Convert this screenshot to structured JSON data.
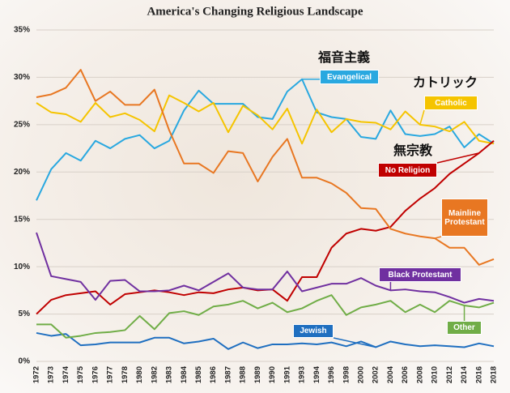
{
  "chart_data": {
    "type": "line",
    "title": "America's Changing Religious Landscape",
    "categories": [
      "1972",
      "1973",
      "1974",
      "1975",
      "1976",
      "1977",
      "1978",
      "1980",
      "1982",
      "1983",
      "1984",
      "1985",
      "1986",
      "1987",
      "1988",
      "1989",
      "1990",
      "1991",
      "1993",
      "1994",
      "1996",
      "1998",
      "2000",
      "2002",
      "2004",
      "2006",
      "2008",
      "2010",
      "2012",
      "2014",
      "2016",
      "2018"
    ],
    "ylim": [
      0,
      35
    ],
    "yticks": [
      {
        "value": 0,
        "label": "0%"
      },
      {
        "value": 5,
        "label": "5%"
      },
      {
        "value": 10,
        "label": "10%"
      },
      {
        "value": 15,
        "label": "15%"
      },
      {
        "value": 20,
        "label": "20%"
      },
      {
        "value": 25,
        "label": "25%"
      },
      {
        "value": 30,
        "label": "30%"
      },
      {
        "value": 35,
        "label": "35%"
      }
    ],
    "grid": true,
    "series": [
      {
        "name": "Evangelical",
        "color": "#29a8e0",
        "values": [
          17,
          20.3,
          22,
          21.2,
          23.3,
          22.5,
          23.5,
          23.9,
          22.5,
          23.3,
          26.5,
          28.6,
          27.2,
          27.2,
          27.2,
          25.8,
          25.6,
          28.5,
          29.8,
          26.3,
          25.8,
          25.6,
          23.7,
          23.5,
          26.5,
          24,
          23.8,
          24,
          24.8,
          22.6,
          24,
          23
        ]
      },
      {
        "name": "Catholic",
        "color": "#f5c400",
        "values": [
          27.3,
          26.3,
          26.1,
          25.3,
          27.3,
          25.8,
          26.2,
          25.5,
          24.3,
          28.1,
          27.3,
          26.4,
          27.3,
          24.2,
          27,
          26,
          24.5,
          26.7,
          23,
          26.6,
          24.2,
          25.6,
          25.3,
          25.2,
          24.5,
          26.4,
          25,
          24.8,
          24.3,
          25.3,
          23.3,
          23
        ]
      },
      {
        "name": "No Religion",
        "color": "#c00000",
        "values": [
          5,
          6.5,
          7,
          7.2,
          7.4,
          6,
          7.1,
          7.3,
          7.5,
          7.3,
          7,
          7.3,
          7.2,
          7.6,
          7.8,
          7.5,
          7.6,
          6.4,
          8.9,
          8.9,
          12,
          13.5,
          14,
          13.8,
          14.2,
          15.9,
          17.2,
          18.3,
          19.8,
          20.9,
          22,
          23.3
        ]
      },
      {
        "name": "Mainline Protestant",
        "color": "#e87722",
        "values": [
          27.9,
          28.2,
          28.9,
          30.8,
          27.5,
          28.5,
          27.1,
          27.1,
          28.7,
          24.4,
          20.9,
          20.9,
          19.9,
          22.2,
          22,
          19,
          21.6,
          23.5,
          19.4,
          19.4,
          18.8,
          17.8,
          16.2,
          16.1,
          14,
          13.5,
          13.2,
          13,
          12,
          12,
          10.2,
          10.8
        ]
      },
      {
        "name": "Black Protestant",
        "color": "#7030a0",
        "values": [
          13.6,
          9,
          8.7,
          8.4,
          6.5,
          8.5,
          8.6,
          7.4,
          7.4,
          7.5,
          8,
          7.5,
          8.4,
          9.3,
          7.8,
          7.6,
          7.6,
          9.5,
          7.4,
          7.8,
          8.2,
          8.2,
          8.8,
          8,
          7.5,
          7.6,
          7.4,
          7.3,
          6.8,
          6.2,
          6.6,
          6.4
        ]
      },
      {
        "name": "Jewish",
        "color": "#1f6fc0",
        "values": [
          3,
          2.7,
          2.9,
          1.7,
          1.8,
          2,
          2,
          2,
          2.5,
          2.5,
          1.9,
          2.1,
          2.4,
          1.3,
          2,
          1.4,
          1.8,
          1.8,
          1.9,
          1.8,
          2,
          1.6,
          2.1,
          1.5,
          2.1,
          1.8,
          1.6,
          1.7,
          1.6,
          1.5,
          1.9,
          1.6
        ]
      },
      {
        "name": "Other",
        "color": "#70ad47",
        "values": [
          3.9,
          3.9,
          2.5,
          2.7,
          3,
          3.1,
          3.3,
          4.8,
          3.4,
          5.1,
          5.3,
          4.9,
          5.8,
          6,
          6.4,
          5.6,
          6.2,
          5.2,
          5.6,
          6.4,
          7,
          4.9,
          5.7,
          6,
          6.4,
          5.2,
          6,
          5.2,
          6.4,
          5.9,
          5.7,
          6.2
        ]
      }
    ],
    "annotations": [
      "福音主義",
      "カトリック",
      "無宗教"
    ]
  }
}
